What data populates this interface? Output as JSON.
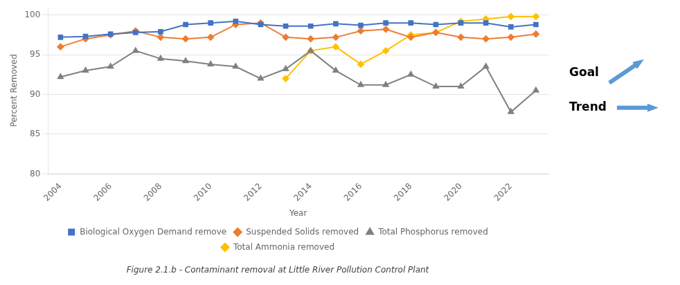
{
  "chart_data": {
    "type": "line",
    "title": "Figure 2.1.b - Contaminant removal at Little River Pollution Control Plant",
    "x_label": "Year",
    "y_label": "Percent Removed",
    "x": [
      2004,
      2005,
      2006,
      2007,
      2008,
      2009,
      2010,
      2011,
      2012,
      2013,
      2014,
      2015,
      2016,
      2017,
      2018,
      2019,
      2020,
      2021,
      2022,
      2023
    ],
    "series": [
      {
        "name": "Biological Oxygen Demand remove",
        "color": "#4472C4",
        "marker": "square",
        "values": [
          97.2,
          97.3,
          97.6,
          97.8,
          97.9,
          98.8,
          99.0,
          99.2,
          98.8,
          98.6,
          98.6,
          98.9,
          98.7,
          99.0,
          99.0,
          98.8,
          99.0,
          99.0,
          98.5,
          98.8
        ]
      },
      {
        "name": "Suspended Solids removed",
        "color": "#ED7D31",
        "marker": "diamond",
        "values": [
          96.0,
          97.0,
          97.5,
          98.0,
          97.2,
          97.0,
          97.2,
          98.8,
          99.0,
          97.2,
          97.0,
          97.2,
          98.0,
          98.2,
          97.2,
          97.8,
          97.2,
          97.0,
          97.2,
          97.6
        ]
      },
      {
        "name": "Total Phosphorus removed",
        "color": "#808080",
        "marker": "triangle",
        "values": [
          92.2,
          93.0,
          93.5,
          95.5,
          94.5,
          94.2,
          93.8,
          93.5,
          92.0,
          93.2,
          95.5,
          93.0,
          91.2,
          91.2,
          92.5,
          91.0,
          91.0,
          93.5,
          87.8,
          90.5
        ]
      },
      {
        "name": "Total Ammonia removed",
        "color": "#FFC000",
        "marker": "diamond",
        "values": [
          null,
          null,
          null,
          null,
          null,
          null,
          null,
          null,
          null,
          92.0,
          95.5,
          96.0,
          93.8,
          95.5,
          97.5,
          97.8,
          99.2,
          99.5,
          99.8,
          99.8
        ]
      }
    ],
    "xlim": [
      2003.5,
      2023.5
    ],
    "xticks": [
      2004,
      2006,
      2008,
      2010,
      2012,
      2014,
      2016,
      2018,
      2020,
      2022
    ],
    "ylim": [
      80,
      101
    ],
    "yticks": [
      80,
      85,
      90,
      95,
      100
    ],
    "grid": "y",
    "legend": "bottom",
    "annotations": [
      {
        "text": "Goal",
        "marker": "arrow_up_right",
        "color": "#5B9BD5"
      },
      {
        "text": "Trend",
        "marker": "arrow_right",
        "color": "#5B9BD5"
      }
    ]
  }
}
